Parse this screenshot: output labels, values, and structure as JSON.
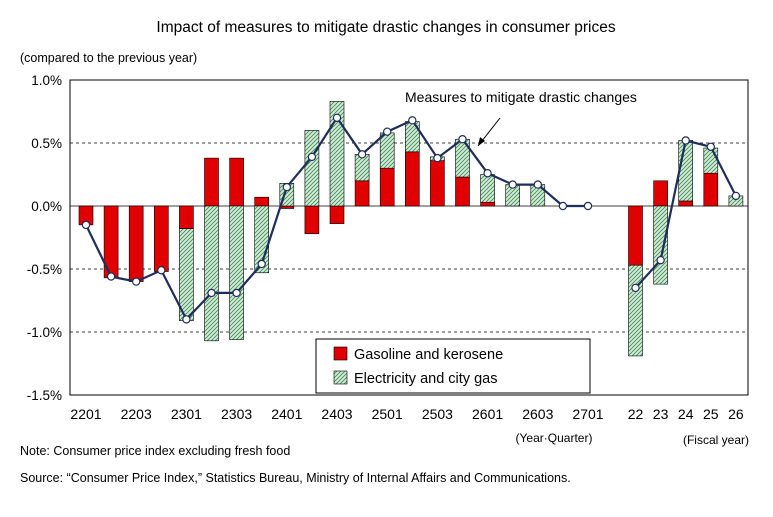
{
  "chart_data": {
    "type": "bar",
    "title": "Impact of measures to mitigate drastic changes in consumer prices",
    "ylabel": "(compared to the previous year)",
    "ylim": [
      -1.5,
      1.0
    ],
    "yticks": [
      -1.5,
      -1.0,
      -0.5,
      0.0,
      0.5,
      1.0
    ],
    "ytick_labels": [
      "-1.5%",
      "-1.0%",
      "-0.5%",
      "0.0%",
      "0.5%",
      "1.0%"
    ],
    "grid": true,
    "colors": {
      "gasoline": "#e00000",
      "electricity": "#cfe8cf",
      "electricity_hatch": "#2e8b57",
      "line": "#1f2d5a"
    },
    "legend": {
      "placement": "bottom-center",
      "entries": [
        "Gasoline and kerosene",
        "Electricity and city gas"
      ]
    },
    "annotation": "Measures to mitigate drastic changes",
    "quarterly": {
      "axis_note": "(Year·Quarter)",
      "categories": [
        "2201",
        "2202",
        "2203",
        "2204",
        "2301",
        "2302",
        "2303",
        "2304",
        "2401",
        "2402",
        "2403",
        "2404",
        "2501",
        "2502",
        "2503",
        "2504",
        "2601",
        "2602",
        "2603",
        "2604",
        "2701"
      ],
      "tick_labels": [
        "2201",
        "2203",
        "2301",
        "2303",
        "2401",
        "2403",
        "2501",
        "2503",
        "2601",
        "2603",
        "2701"
      ],
      "tick_indices": [
        0,
        2,
        4,
        6,
        8,
        10,
        12,
        14,
        16,
        18,
        20
      ],
      "series": [
        {
          "name": "Gasoline and kerosene",
          "values": [
            -0.15,
            -0.57,
            -0.6,
            -0.52,
            -0.18,
            0.38,
            0.38,
            0.07,
            -0.02,
            -0.22,
            -0.14,
            0.2,
            0.3,
            0.43,
            0.36,
            0.23,
            0.03,
            0.0,
            0.0,
            0.0,
            0.0
          ]
        },
        {
          "name": "Electricity and city gas",
          "values": [
            0.0,
            0.0,
            0.0,
            0.0,
            -0.73,
            -1.07,
            -1.06,
            -0.53,
            0.18,
            0.6,
            0.83,
            0.21,
            0.28,
            0.24,
            0.03,
            0.3,
            0.22,
            0.17,
            0.17,
            0.0,
            0.0
          ]
        },
        {
          "name": "Measures to mitigate drastic changes",
          "values": [
            -0.15,
            -0.56,
            -0.6,
            -0.51,
            -0.9,
            -0.69,
            -0.69,
            -0.46,
            0.15,
            0.39,
            0.7,
            0.41,
            0.59,
            0.68,
            0.38,
            0.53,
            0.26,
            0.17,
            0.17,
            0.0,
            0.0
          ]
        }
      ]
    },
    "fiscal": {
      "axis_note": "(Fiscal year)",
      "categories": [
        "22",
        "23",
        "24",
        "25",
        "26"
      ],
      "series": [
        {
          "name": "Gasoline and kerosene",
          "values": [
            -0.47,
            0.2,
            0.04,
            0.26,
            0.0
          ]
        },
        {
          "name": "Electricity and city gas",
          "values": [
            -0.72,
            -0.62,
            0.48,
            0.2,
            0.08
          ]
        },
        {
          "name": "Measures to mitigate drastic changes",
          "values": [
            -0.65,
            -0.43,
            0.52,
            0.47,
            0.08
          ]
        }
      ]
    }
  },
  "notes": {
    "note": "Note: Consumer price index excluding fresh food",
    "source": "Source: “Consumer Price Index,” Statistics Bureau, Ministry of Internal Affairs and Communications."
  }
}
